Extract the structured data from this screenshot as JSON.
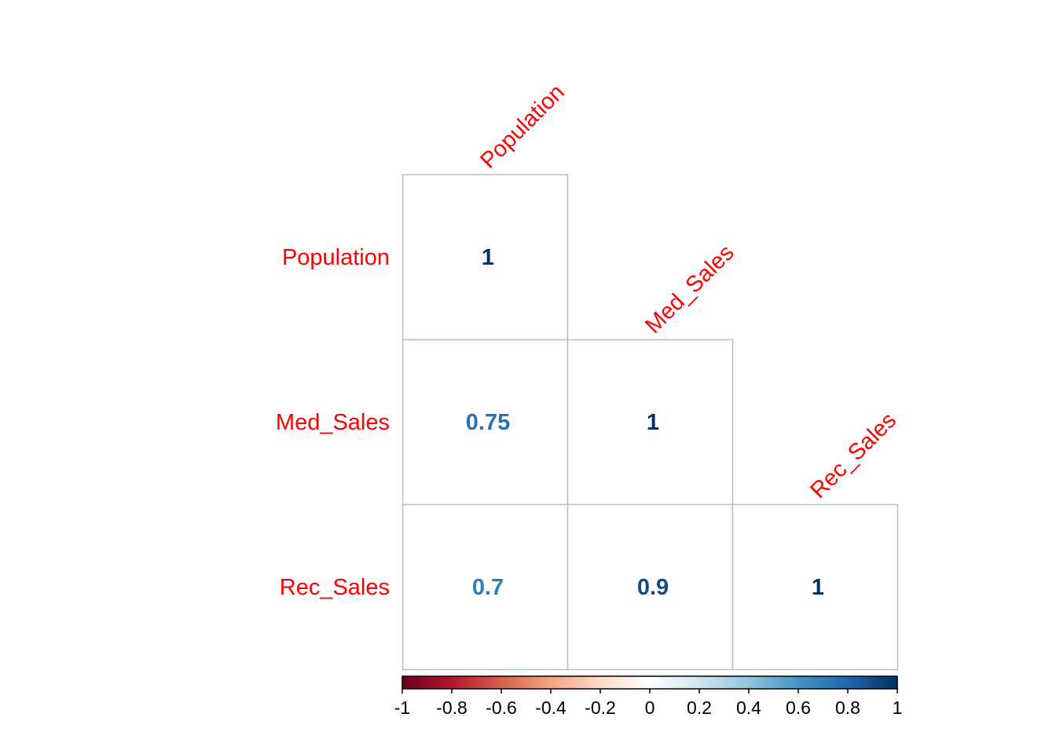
{
  "chart_data": {
    "type": "heatmap",
    "variant": "correlation-matrix-lower-triangle",
    "variables": [
      "Population",
      "Med_Sales",
      "Rec_Sales"
    ],
    "cells": [
      {
        "row": "Population",
        "col": "Population",
        "value": 1,
        "label": "1"
      },
      {
        "row": "Med_Sales",
        "col": "Population",
        "value": 0.75,
        "label": "0.75"
      },
      {
        "row": "Med_Sales",
        "col": "Med_Sales",
        "value": 1,
        "label": "1"
      },
      {
        "row": "Rec_Sales",
        "col": "Population",
        "value": 0.7,
        "label": "0.7"
      },
      {
        "row": "Rec_Sales",
        "col": "Med_Sales",
        "value": 0.9,
        "label": "0.9"
      },
      {
        "row": "Rec_Sales",
        "col": "Rec_Sales",
        "value": 1,
        "label": "1"
      }
    ],
    "colorbar": {
      "range": [
        -1,
        1
      ],
      "ticks": [
        "-1",
        "-0.8",
        "-0.6",
        "-0.4",
        "-0.2",
        "0",
        "0.2",
        "0.4",
        "0.6",
        "0.8",
        "1"
      ],
      "palette": [
        "#67001F",
        "#B2182B",
        "#D6604D",
        "#F4A582",
        "#FDDBC7",
        "#FFFFFF",
        "#D1E5F0",
        "#92C5DE",
        "#4393C3",
        "#2166AC",
        "#053061"
      ]
    },
    "label_color": "#FF0000",
    "grid_color": "#BEBEBE"
  }
}
